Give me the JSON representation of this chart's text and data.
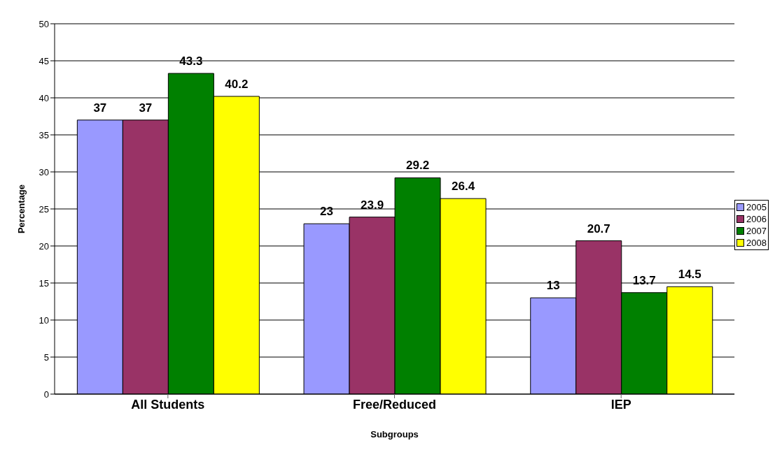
{
  "chart_data": {
    "type": "bar",
    "xlabel": "Subgroups",
    "ylabel": "Percentage",
    "categories": [
      "All Students",
      "Free/Reduced",
      "IEP"
    ],
    "series": [
      {
        "name": "2005",
        "color": "#9999ff",
        "values": [
          37,
          23,
          13
        ]
      },
      {
        "name": "2006",
        "color": "#993366",
        "values": [
          37,
          23.9,
          20.7
        ]
      },
      {
        "name": "2007",
        "color": "#008000",
        "values": [
          43.3,
          29.2,
          13.7
        ]
      },
      {
        "name": "2008",
        "color": "#ffff00",
        "values": [
          40.2,
          26.4,
          14.5
        ]
      }
    ],
    "ylim": [
      0,
      50
    ],
    "yticks": [
      0,
      5,
      10,
      15,
      20,
      25,
      30,
      35,
      40,
      45,
      50
    ],
    "grid": "y",
    "legend": "right",
    "data_labels": true
  }
}
